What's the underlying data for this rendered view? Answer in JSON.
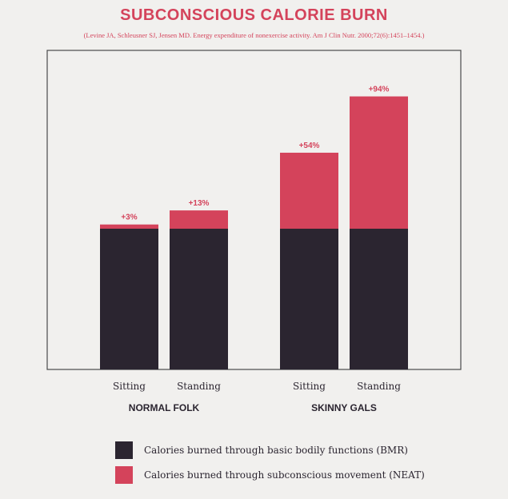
{
  "colors": {
    "bmr": "#2b2530",
    "neat": "#d4435b",
    "background": "#f1f0ee",
    "frame": "#4a4a4a"
  },
  "chart_data": {
    "type": "bar",
    "stacked": true,
    "title": "SUBCONSCIOUS CALORIE BURN",
    "subtitle": "(Levine JA, Schleusner SJ, Jensen MD. Energy expenditure of nonexercise activity. Am J Clin Nutr. 2000;72(6):1451–1454.)",
    "groups": [
      {
        "name": "NORMAL FOLK",
        "categories": [
          "Sitting",
          "Standing"
        ]
      },
      {
        "name": "SKINNY GALS",
        "categories": [
          "Sitting",
          "Standing"
        ]
      }
    ],
    "categories": [
      "Sitting",
      "Standing",
      "Sitting",
      "Standing"
    ],
    "series": [
      {
        "name": "Calories burned through basic bodily functions (BMR)",
        "values": [
          100,
          100,
          100,
          100
        ]
      },
      {
        "name": "Calories burned through subconscious movement (NEAT)",
        "values": [
          3,
          13,
          54,
          94
        ]
      }
    ],
    "data_labels": [
      "+3%",
      "+13%",
      "+54%",
      "+94%"
    ],
    "ylim": [
      0,
      200
    ],
    "grid": false,
    "legend_position": "bottom"
  }
}
